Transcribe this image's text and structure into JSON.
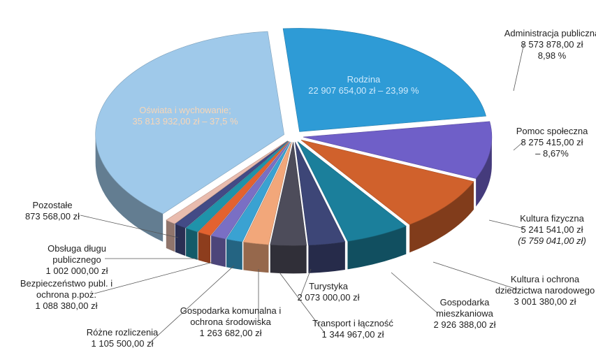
{
  "chart_data": {
    "type": "pie",
    "categories": [
      "Rodzina",
      "Administracja publiczna",
      "Pomoc społeczna",
      "Kultura fizyczna",
      "Kultura i ochrona dziedzictwa narodowego",
      "Gospodarka mieszkaniowa",
      "Turystyka",
      "Transport i łączność",
      "Gospodarka komunalna i ochrona środowiska",
      "Różne rozliczenia",
      "Bezpieczeństwo publ. i ochrona p.poż.",
      "Obsługa długu publicznego",
      "Pozostałe",
      "Oświata i wychowanie;"
    ],
    "values": [
      22907654,
      8573878,
      8275415,
      5241541,
      3001380,
      2926388,
      2073000,
      1344967,
      1263682,
      1105500,
      1088380,
      1002000,
      873568,
      35813932
    ],
    "value_labels": [
      "22 907 654,00 zł – 23,99 %",
      "8 573 878,00 zł",
      "8 275 415,00 zł",
      "5 241 541,00 zł",
      "3 001 380,00 zł",
      "2 926 388,00 zł",
      "2 073 000,00 zł",
      "1 344 967,00 zł",
      "1 263 682,00 zł",
      "1 105 500,00 zł",
      "1 088 380,00 zł",
      "1 002 000,00 zł",
      "873 568,00 zł",
      "35 813 932,00 zł – 37,5 %"
    ],
    "sublabels": [
      null,
      "8,98 %",
      "– 8,67%",
      "(5 759 041,00 zł)",
      null,
      null,
      null,
      null,
      null,
      null,
      null,
      null,
      null,
      null
    ],
    "colors": [
      "#2e9bd6",
      "#6f5fc8",
      "#d0612c",
      "#1b7f9b",
      "#3d4677",
      "#4d4c5a",
      "#f2a77a",
      "#3aa2d2",
      "#7a6fc4",
      "#e3622f",
      "#1f93aa",
      "#434b86",
      "#e9bcae",
      "#9fc9ea",
      "#f08b4b"
    ]
  }
}
